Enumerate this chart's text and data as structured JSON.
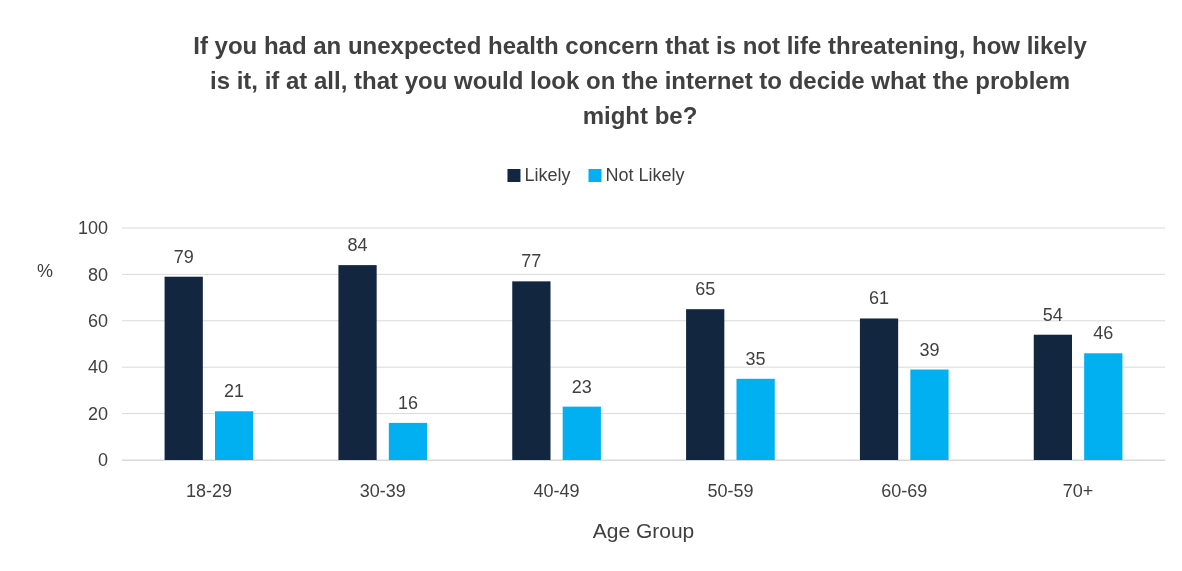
{
  "chart_data": {
    "type": "bar",
    "title": "If you had an unexpected health concern that is not life threatening, how likely is it, if at all, that you would look on the internet to decide what the problem might be?",
    "xlabel": "Age Group",
    "ylabel": "%",
    "categories": [
      "18-29",
      "30-39",
      "40-49",
      "50-59",
      "60-69",
      "70+"
    ],
    "series": [
      {
        "name": "Likely",
        "color": "#12263f",
        "values": [
          79,
          84,
          77,
          65,
          61,
          54
        ]
      },
      {
        "name": "Not Likely",
        "color": "#00b0f0",
        "values": [
          21,
          16,
          23,
          35,
          39,
          46
        ]
      }
    ],
    "ylim": [
      0,
      100
    ],
    "yticks": [
      0,
      20,
      40,
      60,
      80,
      100
    ],
    "grid": "y",
    "legend": "top",
    "data_labels": true
  }
}
